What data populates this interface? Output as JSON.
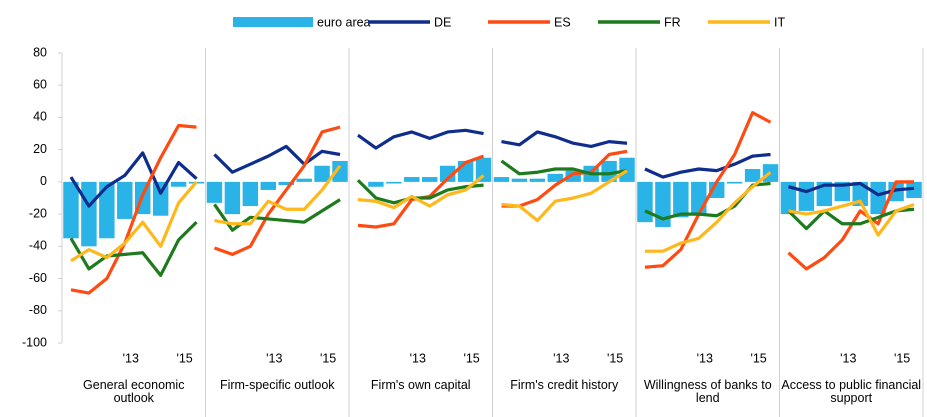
{
  "chart_data": {
    "type": "combo",
    "ylim": [
      -100,
      80
    ],
    "yticks": [
      -100,
      -80,
      -60,
      -40,
      -20,
      0,
      20,
      40,
      60,
      80
    ],
    "categories": [
      null,
      null,
      null,
      "'13",
      null,
      null,
      "'15",
      null
    ],
    "panels": [
      "General economic outlook",
      "Firm-specific outlook",
      "Firm's own capital",
      "Firm's credit history",
      "Willingness of banks to lend",
      "Access to public financial support"
    ],
    "series": [
      {
        "name": "euro area",
        "type": "bar",
        "color": "#29b3e6",
        "values": [
          [
            -35,
            -40,
            -35,
            -23,
            -20,
            -21,
            -3,
            -1
          ],
          [
            -13,
            -20,
            -15,
            -5,
            -2,
            2,
            10,
            13
          ],
          [
            0,
            -3,
            -1,
            3,
            3,
            10,
            13,
            15
          ],
          [
            3,
            2,
            2,
            5,
            7,
            10,
            13,
            15
          ],
          [
            -25,
            -28,
            -22,
            -20,
            -10,
            -1,
            8,
            11
          ],
          [
            -20,
            -18,
            -15,
            -12,
            -15,
            -20,
            -12,
            -10
          ]
        ]
      },
      {
        "name": "DE",
        "type": "line",
        "color": "#0f2d8c",
        "values": [
          [
            3,
            -15,
            -3,
            4,
            18,
            -7,
            12,
            2
          ],
          [
            17,
            6,
            11,
            16,
            22,
            11,
            19,
            17
          ],
          [
            29,
            21,
            28,
            31,
            27,
            31,
            32,
            30
          ],
          [
            25,
            23,
            31,
            28,
            24,
            22,
            25,
            24
          ],
          [
            8,
            3,
            6,
            8,
            7,
            11,
            16,
            17
          ],
          [
            -3,
            -6,
            -2,
            -2,
            -1,
            -8,
            -5,
            -4
          ]
        ]
      },
      {
        "name": "ES",
        "type": "line",
        "color": "#ff4b12",
        "values": [
          [
            -67,
            -69,
            -60,
            -38,
            -8,
            15,
            35,
            34
          ],
          [
            -41,
            -45,
            -40,
            -20,
            -5,
            10,
            31,
            34
          ],
          [
            -27,
            -28,
            -26,
            -11,
            -9,
            2,
            12,
            16
          ],
          [
            -15,
            -15,
            -11,
            -2,
            5,
            6,
            17,
            19
          ],
          [
            -53,
            -52,
            -42,
            -20,
            0,
            17,
            43,
            37
          ],
          [
            -44,
            -54,
            -47,
            -36,
            -18,
            -26,
            0,
            0
          ]
        ]
      },
      {
        "name": "FR",
        "type": "line",
        "color": "#1d7a1d",
        "values": [
          [
            -35,
            -54,
            -46,
            -45,
            -44,
            -58,
            -36,
            -25
          ],
          [
            -14,
            -30,
            -22,
            -23,
            -24,
            -25,
            -18,
            -11
          ],
          [
            1,
            -10,
            -13,
            -10,
            -10,
            -5,
            -3,
            -2
          ],
          [
            13,
            5,
            6,
            8,
            8,
            5,
            5,
            7
          ],
          [
            -18,
            -23,
            -20,
            -20,
            -21,
            -15,
            -2,
            -1
          ],
          [
            -18,
            -29,
            -18,
            -26,
            -26,
            -22,
            -18,
            -17
          ]
        ]
      },
      {
        "name": "IT",
        "type": "line",
        "color": "#ffb81c",
        "values": [
          [
            -49,
            -42,
            -47,
            -38,
            -25,
            -40,
            -13,
            0
          ],
          [
            -24,
            -26,
            -26,
            -12,
            -17,
            -17,
            -5,
            10
          ],
          [
            -11,
            -12,
            -16,
            -9,
            -15,
            -8,
            -5,
            4
          ],
          [
            -14,
            -15,
            -24,
            -12,
            -10,
            -7,
            0,
            7
          ],
          [
            -43,
            -43,
            -38,
            -35,
            -25,
            -13,
            -3,
            6
          ],
          [
            -18,
            -20,
            -18,
            -15,
            -12,
            -33,
            -18,
            -14
          ]
        ]
      }
    ]
  }
}
